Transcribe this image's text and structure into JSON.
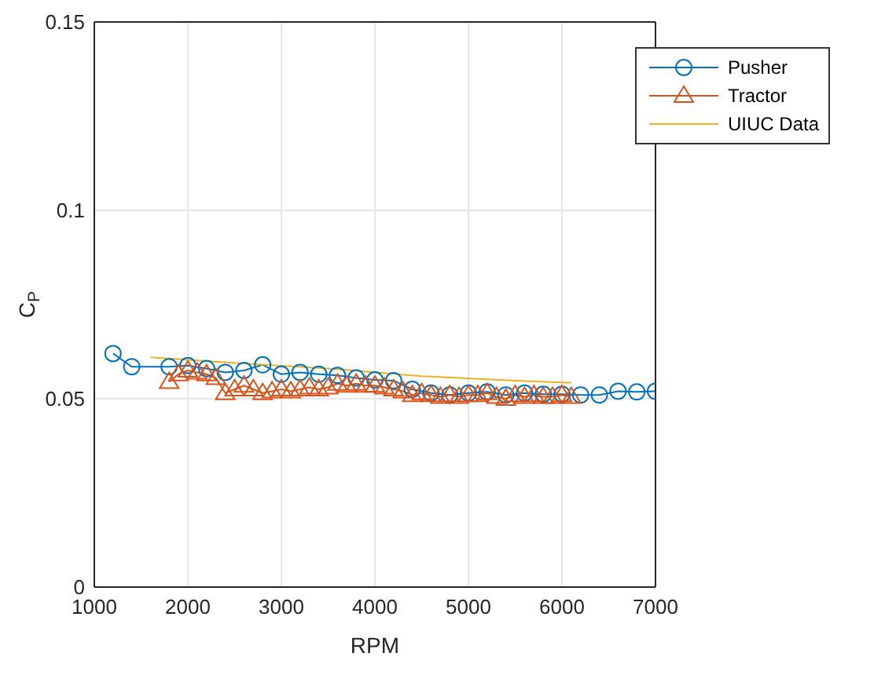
{
  "chart_data": {
    "type": "line",
    "xlabel": "RPM",
    "ylabel": "C$_{P}$",
    "xlim": [
      1000,
      7000
    ],
    "xticks": [
      1000,
      2000,
      3000,
      4000,
      5000,
      6000,
      7000
    ],
    "ylim": [
      0,
      0.15
    ],
    "yticks": [
      0,
      0.05,
      0.1,
      0.15
    ],
    "grid": true,
    "legend": "top right",
    "series": [
      {
        "name": "Pusher",
        "color": "#0072bd",
        "marker": "circle",
        "x": [
          1200,
          1400,
          1800,
          2000,
          2200,
          2400,
          2600,
          2800,
          3000,
          3200,
          3400,
          3600,
          3800,
          4000,
          4200,
          4400,
          4600,
          4800,
          5000,
          5200,
          5400,
          5600,
          5800,
          6000,
          6200,
          6400,
          6600,
          6800,
          7000
        ],
        "values": [
          0.062,
          0.0585,
          0.0585,
          0.0588,
          0.058,
          0.057,
          0.0575,
          0.059,
          0.0565,
          0.057,
          0.0565,
          0.0562,
          0.0555,
          0.055,
          0.0548,
          0.0525,
          0.0515,
          0.051,
          0.0515,
          0.0518,
          0.051,
          0.0515,
          0.0512,
          0.0512,
          0.051,
          0.051,
          0.052,
          0.0518,
          0.052
        ]
      },
      {
        "name": "Tractor",
        "color": "#d95319",
        "marker": "triangle",
        "x": [
          1800,
          1900,
          2000,
          2100,
          2200,
          2300,
          2400,
          2500,
          2600,
          2700,
          2800,
          2900,
          3000,
          3100,
          3200,
          3300,
          3400,
          3500,
          3600,
          3700,
          3800,
          3900,
          4000,
          4100,
          4200,
          4300,
          4400,
          4500,
          4600,
          4700,
          4800,
          4900,
          5000,
          5100,
          5200,
          5300,
          5400,
          5500,
          5600,
          5700,
          5800,
          5900,
          6000,
          6100
        ],
        "values": [
          0.0545,
          0.0565,
          0.0575,
          0.057,
          0.0565,
          0.0555,
          0.0515,
          0.0525,
          0.0535,
          0.0525,
          0.0515,
          0.052,
          0.0525,
          0.052,
          0.0525,
          0.053,
          0.0525,
          0.053,
          0.054,
          0.0535,
          0.054,
          0.0535,
          0.0535,
          0.053,
          0.0525,
          0.052,
          0.051,
          0.0515,
          0.051,
          0.0505,
          0.051,
          0.0505,
          0.051,
          0.051,
          0.0515,
          0.0505,
          0.05,
          0.051,
          0.0505,
          0.051,
          0.0505,
          0.0505,
          0.051,
          0.0505
        ]
      },
      {
        "name": "UIUC Data",
        "color": "#edb120",
        "marker": "none",
        "x": [
          1600,
          2500,
          3500,
          4500,
          5500,
          6100
        ],
        "values": [
          0.061,
          0.0595,
          0.058,
          0.056,
          0.0548,
          0.0542
        ]
      }
    ]
  }
}
